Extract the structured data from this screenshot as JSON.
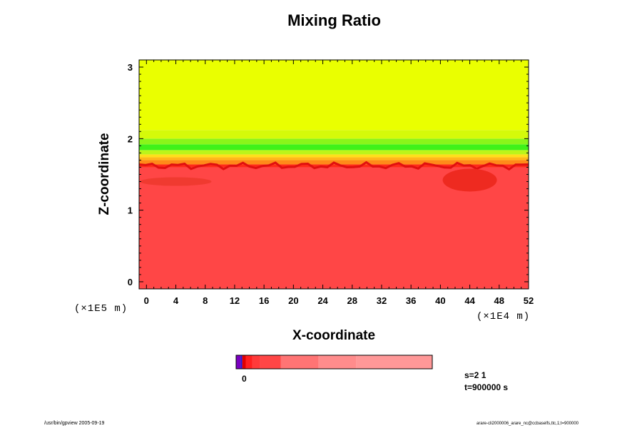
{
  "chart_data": {
    "type": "heatmap",
    "title": "Mixing Ratio",
    "xlabel": "X-coordinate",
    "ylabel": "Z-coordinate",
    "x_scale_note": "(×1E4 m)",
    "y_scale_note": "(×1E5 m)",
    "x_ticks": [
      "0",
      "4",
      "8",
      "12",
      "16",
      "20",
      "24",
      "28",
      "32",
      "36",
      "40",
      "44",
      "48",
      "52"
    ],
    "y_ticks": [
      "0",
      "1",
      "2",
      "3"
    ],
    "xlim": [
      -1,
      52
    ],
    "ylim": [
      -0.1,
      3.1
    ],
    "layers": [
      {
        "from": -0.1,
        "to": 1.6,
        "color": "#ff4646"
      },
      {
        "from": 1.6,
        "to": 1.64,
        "color": "#ff2a1a"
      },
      {
        "from": 1.64,
        "to": 1.7,
        "color": "#ff8a1a"
      },
      {
        "from": 1.7,
        "to": 1.74,
        "color": "#ffb81a"
      },
      {
        "from": 1.74,
        "to": 1.78,
        "color": "#ffe01a"
      },
      {
        "from": 1.78,
        "to": 1.84,
        "color": "#bbf51a"
      },
      {
        "from": 1.84,
        "to": 1.92,
        "color": "#3ff21a"
      },
      {
        "from": 1.92,
        "to": 2.0,
        "color": "#8af51a"
      },
      {
        "from": 2.0,
        "to": 2.12,
        "color": "#d5fa0a"
      },
      {
        "from": 2.12,
        "to": 3.1,
        "color": "#eaff00"
      }
    ],
    "colorbar": {
      "zero_label": "0",
      "segments": [
        {
          "color": "#7a00c0",
          "weight": 1.5
        },
        {
          "color": "#2a1ad0",
          "weight": 0.6
        },
        {
          "color": "#e00000",
          "weight": 1.2
        },
        {
          "color": "#ff2020",
          "weight": 2.2
        },
        {
          "color": "#ff3a3a",
          "weight": 2.8
        },
        {
          "color": "#ff4646",
          "weight": 7
        },
        {
          "color": "#ff7474",
          "weight": 13
        },
        {
          "color": "#ff8c8c",
          "weight": 13
        },
        {
          "color": "#ff9898",
          "weight": 26
        }
      ]
    }
  },
  "info": {
    "s_label": "s=2 1",
    "t_label": "t=900000 s"
  },
  "footer": {
    "left": "/usr/bin/gpview 2005-09-19",
    "right": "arare-cli2000006_arare_nc@ccbaselfs,ttc,1;t=900000"
  },
  "colors": {
    "frame": "#000000",
    "background": "#ffffff"
  }
}
